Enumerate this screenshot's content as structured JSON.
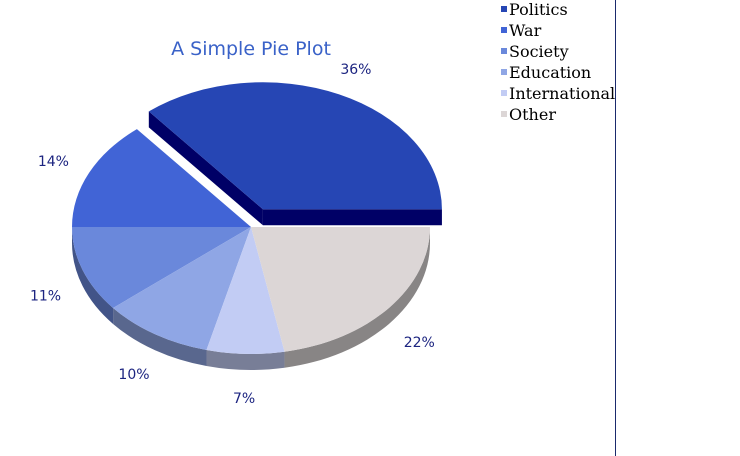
{
  "chart_data": {
    "type": "pie",
    "title": "A Simple Pie Plot",
    "categories": [
      "Politics",
      "War",
      "Society",
      "Education",
      "International",
      "Other"
    ],
    "values": [
      36,
      14,
      11,
      10,
      7,
      22
    ],
    "labels": [
      "36%",
      "14%",
      "11%",
      "10%",
      "7%",
      "22%"
    ],
    "exploded": [
      "Politics"
    ],
    "colors": [
      "#2646b4",
      "#4164d6",
      "#6a88db",
      "#8fa6e5",
      "#c2ccf4",
      "#dcd6d6"
    ],
    "legend": "top-right"
  }
}
